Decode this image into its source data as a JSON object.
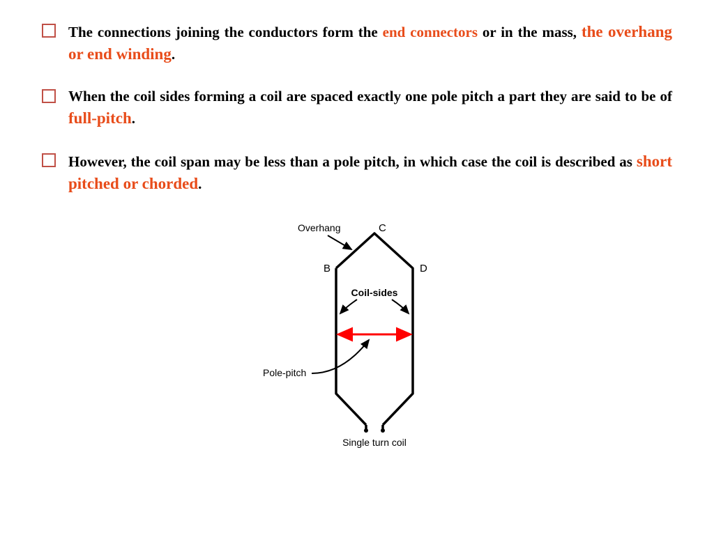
{
  "bullets": [
    {
      "box_color": "#c05046",
      "parts": [
        {
          "text": "The connections joining the conductors form the ",
          "class": ""
        },
        {
          "text": "end connectors",
          "class": "highlight-orange"
        },
        {
          "text": " or in the mass, ",
          "class": ""
        },
        {
          "text": "the overhang or end winding",
          "class": "highlight-orange-large"
        },
        {
          "text": ".",
          "class": ""
        }
      ]
    },
    {
      "box_color": "#c05046",
      "parts": [
        {
          "text": "When the coil sides forming a coil are spaced exactly one pole pitch a part they are said to be of ",
          "class": ""
        },
        {
          "text": "full-pitch",
          "class": "highlight-orange-large"
        },
        {
          "text": ".",
          "class": ""
        }
      ]
    },
    {
      "box_color": "#c05046",
      "parts": [
        {
          "text": "However, the coil span may be less than a pole pitch, in which case the coil is described as ",
          "class": ""
        },
        {
          "text": "short pitched or chorded",
          "class": "highlight-orange-large"
        },
        {
          "text": ".",
          "class": ""
        }
      ]
    }
  ],
  "diagram": {
    "labels": {
      "overhang": "Overhang",
      "c": "C",
      "b": "B",
      "d": "D",
      "coil_sides": "Coil-sides",
      "pole_pitch": "Pole-pitch",
      "caption": "Single turn coil"
    },
    "colors": {
      "stroke": "#000000",
      "arrow_red": "#ff0000",
      "text": "#000000"
    },
    "stroke_width_main": 3.5,
    "stroke_width_arrow": 2,
    "font_size_label": 14,
    "font_size_point": 15,
    "font_size_bold": 14,
    "font_size_caption": 14
  }
}
